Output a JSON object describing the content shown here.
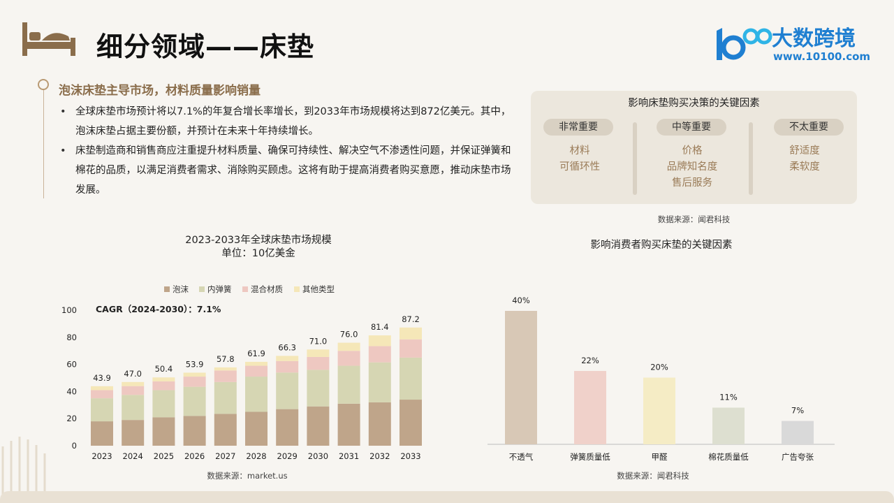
{
  "header": {
    "title": "细分领域——床垫",
    "logo_name": "大数跨境",
    "logo_url": "www.10100.com"
  },
  "intro": {
    "heading": "泡沫床垫主导市场，材料质量影响销量",
    "bullets": [
      "全球床垫市场预计将以7.1%的年复合增长率增长，到2033年市场规模将达到872亿美元。其中，泡沫床垫占据主要份额，并预计在未来十年持续增长。",
      "床垫制造商和销售商应注重提升材料质量、确保可持续性、解决空气不渗透性问题，并保证弹簧和棉花的品质，以满足消费者需求、消除购买顾虑。这将有助于提高消费者购买意愿，推动床垫市场发展。"
    ]
  },
  "factors": {
    "title": "影响床垫购买决策的关键因素",
    "columns": [
      {
        "label": "非常重要",
        "items": [
          "材料",
          "可循环性"
        ]
      },
      {
        "label": "中等重要",
        "items": [
          "价格",
          "品牌知名度",
          "售后服务"
        ]
      },
      {
        "label": "不太重要",
        "items": [
          "舒适度",
          "柔软度"
        ]
      }
    ],
    "source": "数据来源：闻君科技"
  },
  "chart_data": [
    {
      "type": "bar",
      "stacked": true,
      "title": "2023-2033年全球床垫市场规模",
      "subtitle": "单位：10亿美金",
      "annotation": "CAGR（2024-2030）：7.1%",
      "categories": [
        "2023",
        "2024",
        "2025",
        "2026",
        "2027",
        "2028",
        "2029",
        "2030",
        "2031",
        "2032",
        "2033"
      ],
      "totals": [
        43.9,
        47.0,
        50.4,
        53.9,
        57.8,
        61.9,
        66.3,
        71.0,
        76.0,
        81.4,
        87.2
      ],
      "series": [
        {
          "name": "泡沫",
          "color": "#bfa58a",
          "values": [
            18,
            19,
            21,
            22,
            23.5,
            25,
            27,
            29,
            31,
            32,
            34
          ]
        },
        {
          "name": "内弹簧",
          "color": "#d6d6b3",
          "values": [
            17,
            18.5,
            20,
            21.5,
            23.5,
            26,
            27,
            27,
            28,
            29.5,
            31
          ]
        },
        {
          "name": "混合材质",
          "color": "#eec8c1",
          "values": [
            6,
            6.5,
            6.5,
            7.5,
            8.5,
            8,
            8.5,
            9.5,
            11,
            12,
            13.5
          ]
        },
        {
          "name": "其他类型",
          "color": "#f5e7b8",
          "values": [
            2.9,
            3,
            2.9,
            2.9,
            2.3,
            2.9,
            3.8,
            5.5,
            6,
            7.9,
            8.7
          ]
        }
      ],
      "ylim": [
        0,
        100
      ],
      "yticks": [
        0,
        20,
        40,
        60,
        80,
        100
      ],
      "legend": "top",
      "grid": false,
      "source": "数据来源：market.us"
    },
    {
      "type": "bar",
      "title": "影响消费者购买床垫的关键因素",
      "categories": [
        "不透气",
        "弹簧质量低",
        "甲醛",
        "棉花质量低",
        "广告夸张"
      ],
      "values": [
        40,
        22,
        20,
        11,
        7
      ],
      "labels": [
        "40%",
        "22%",
        "20%",
        "11%",
        "7%"
      ],
      "colors": [
        "#d8c8b6",
        "#f0d1ca",
        "#f5ecc5",
        "#dddfd0",
        "#d9d9d9"
      ],
      "grid": false,
      "source": "数据来源：闻君科技"
    }
  ]
}
